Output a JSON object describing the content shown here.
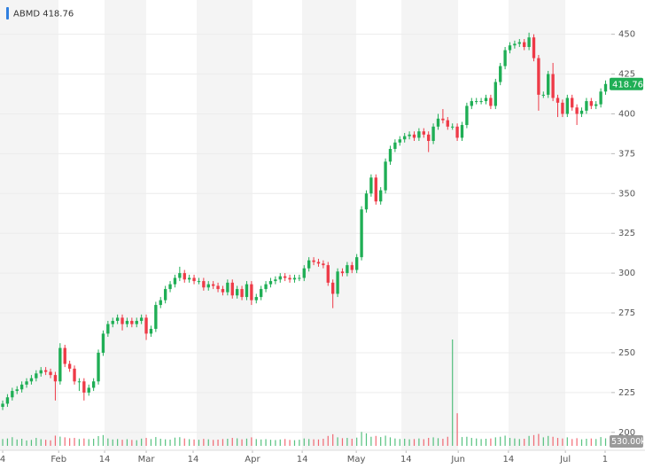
{
  "chart_data": {
    "type": "candlestick",
    "title": "ABMD 418.76",
    "up_color": "#1fae55",
    "down_color": "#ee3a47",
    "title_marker_color": "#2f7fe0",
    "grid": true,
    "ylim": [
      193.2,
      471.5
    ],
    "yticks": [
      200,
      225,
      250,
      275,
      300,
      325,
      350,
      375,
      400,
      425,
      450
    ],
    "xlim": [
      -0.56,
      127.2
    ],
    "xticks": [
      {
        "value": 0,
        "label": "4"
      },
      {
        "value": 11.7,
        "label": "Feb"
      },
      {
        "value": 21.3,
        "label": "14"
      },
      {
        "value": 30,
        "label": "Mar"
      },
      {
        "value": 39.8,
        "label": "14"
      },
      {
        "value": 52.2,
        "label": "Apr"
      },
      {
        "value": 62.6,
        "label": "14"
      },
      {
        "value": 73.9,
        "label": "May"
      },
      {
        "value": 84.3,
        "label": "14"
      },
      {
        "value": 95.2,
        "label": "Jun"
      },
      {
        "value": 105.7,
        "label": "14"
      },
      {
        "value": 117.6,
        "label": "Jul"
      },
      {
        "value": 125.9,
        "label": "1"
      }
    ],
    "open": [
      216,
      218,
      222,
      226,
      227,
      230,
      232,
      234,
      237,
      239,
      238,
      236,
      232,
      253,
      243,
      240,
      232,
      232,
      225,
      228,
      232,
      250,
      262,
      268,
      270,
      272,
      268,
      270,
      268,
      270,
      272,
      262,
      265,
      280,
      283,
      290,
      293,
      297,
      300,
      296,
      297,
      295,
      295,
      291,
      293,
      292,
      290,
      288,
      294,
      286,
      290,
      285,
      293,
      283,
      285,
      290,
      293,
      295,
      296,
      298,
      297,
      296,
      297,
      297,
      303,
      308,
      307,
      306,
      305,
      294,
      287,
      301,
      300,
      305,
      302,
      310,
      340,
      350,
      360,
      345,
      352,
      370,
      378,
      382,
      384,
      386,
      387,
      385,
      389,
      387,
      383,
      392,
      397,
      396,
      392,
      392,
      385,
      393,
      405,
      408,
      408,
      408,
      410,
      405,
      420,
      430,
      440,
      443,
      444,
      445,
      442,
      448,
      435,
      412,
      412,
      425,
      410,
      407,
      400,
      410,
      404,
      400,
      402,
      408,
      405,
      406,
      414
    ],
    "high": [
      220,
      224,
      228,
      229,
      232,
      234,
      236,
      239,
      241,
      241,
      240,
      238,
      256,
      255,
      245,
      242,
      234,
      234,
      230,
      234,
      252,
      264,
      270,
      272,
      274,
      274,
      272,
      272,
      272,
      274,
      274,
      267,
      282,
      285,
      292,
      295,
      299,
      304,
      302,
      299,
      299,
      297,
      297,
      295,
      295,
      294,
      292,
      296,
      296,
      292,
      292,
      295,
      295,
      287,
      292,
      295,
      297,
      298,
      300,
      300,
      299,
      299,
      299,
      305,
      310,
      310,
      309,
      308,
      307,
      296,
      303,
      303,
      307,
      307,
      312,
      342,
      352,
      362,
      362,
      354,
      372,
      380,
      384,
      386,
      388,
      389,
      389,
      391,
      391,
      389,
      394,
      400,
      403,
      398,
      394,
      394,
      395,
      407,
      410,
      410,
      410,
      412,
      412,
      422,
      432,
      442,
      445,
      446,
      447,
      447,
      451,
      450,
      437,
      414,
      427,
      432,
      412,
      409,
      412,
      412,
      406,
      404,
      410,
      410,
      408,
      416,
      421
    ],
    "low": [
      214,
      216,
      220,
      224,
      225,
      228,
      230,
      232,
      235,
      236,
      234,
      220,
      230,
      241,
      238,
      230,
      226,
      220,
      223,
      226,
      230,
      248,
      260,
      266,
      268,
      264,
      266,
      266,
      266,
      268,
      258,
      260,
      263,
      278,
      281,
      288,
      291,
      295,
      294,
      294,
      293,
      293,
      289,
      289,
      290,
      288,
      286,
      286,
      284,
      284,
      283,
      283,
      280,
      281,
      283,
      288,
      291,
      293,
      294,
      295,
      294,
      294,
      295,
      295,
      301,
      305,
      304,
      303,
      292,
      278,
      285,
      298,
      298,
      300,
      300,
      308,
      338,
      348,
      343,
      343,
      350,
      368,
      376,
      380,
      382,
      384,
      383,
      383,
      385,
      376,
      381,
      390,
      394,
      390,
      390,
      383,
      383,
      391,
      403,
      406,
      406,
      406,
      403,
      403,
      418,
      428,
      438,
      441,
      442,
      440,
      440,
      433,
      402,
      410,
      410,
      408,
      398,
      398,
      398,
      402,
      393,
      398,
      400,
      403,
      403,
      404,
      412
    ],
    "close": [
      218,
      222,
      226,
      227,
      230,
      232,
      234,
      237,
      239,
      238,
      236,
      232,
      253,
      243,
      240,
      232,
      232,
      225,
      228,
      232,
      250,
      262,
      268,
      270,
      272,
      268,
      270,
      268,
      270,
      272,
      262,
      265,
      280,
      283,
      290,
      293,
      297,
      300,
      296,
      297,
      295,
      295,
      291,
      293,
      292,
      290,
      288,
      294,
      286,
      290,
      285,
      293,
      283,
      285,
      290,
      293,
      295,
      296,
      298,
      297,
      296,
      297,
      297,
      303,
      308,
      307,
      306,
      305,
      294,
      287,
      301,
      300,
      305,
      302,
      310,
      340,
      350,
      360,
      345,
      352,
      370,
      378,
      382,
      384,
      386,
      387,
      385,
      389,
      387,
      383,
      392,
      397,
      396,
      392,
      392,
      385,
      393,
      405,
      408,
      408,
      408,
      410,
      405,
      420,
      430,
      440,
      443,
      444,
      445,
      442,
      448,
      435,
      412,
      412,
      425,
      410,
      407,
      400,
      410,
      404,
      400,
      402,
      408,
      405,
      406,
      414,
      418.76
    ],
    "volume": [
      480000,
      520000,
      610000,
      450000,
      500000,
      380000,
      420000,
      560000,
      470000,
      430000,
      390000,
      720000,
      650000,
      600000,
      540000,
      560000,
      480000,
      520000,
      470000,
      500000,
      690000,
      760000,
      520000,
      450000,
      480000,
      430000,
      470000,
      420000,
      400000,
      510000,
      560000,
      480000,
      620000,
      500000,
      460000,
      440000,
      580000,
      610000,
      520000,
      470000,
      450000,
      430000,
      490000,
      460000,
      420000,
      440000,
      480000,
      500000,
      560000,
      530000,
      460000,
      510000,
      600000,
      480000,
      450000,
      470000,
      430000,
      410000,
      450000,
      480000,
      420000,
      400000,
      430000,
      520000,
      480000,
      460000,
      450000,
      500000,
      700000,
      820000,
      600000,
      540000,
      560000,
      500000,
      580000,
      980000,
      880000,
      640000,
      700000,
      620000,
      720000,
      600000,
      520000,
      480000,
      500000,
      460000,
      480000,
      520000,
      470000,
      560000,
      600000,
      540000,
      500000,
      640000,
      7500000,
      2300000,
      620000,
      640000,
      560000,
      520000,
      480000,
      500000,
      520000,
      600000,
      640000,
      720000,
      560000,
      520000,
      480000,
      500000,
      700000,
      760000,
      840000,
      600000,
      700000,
      640000,
      560000,
      520000,
      600000,
      480000,
      540000,
      460000,
      500000,
      520000,
      480000,
      620000,
      530000
    ],
    "volume_label": "530.00k"
  }
}
